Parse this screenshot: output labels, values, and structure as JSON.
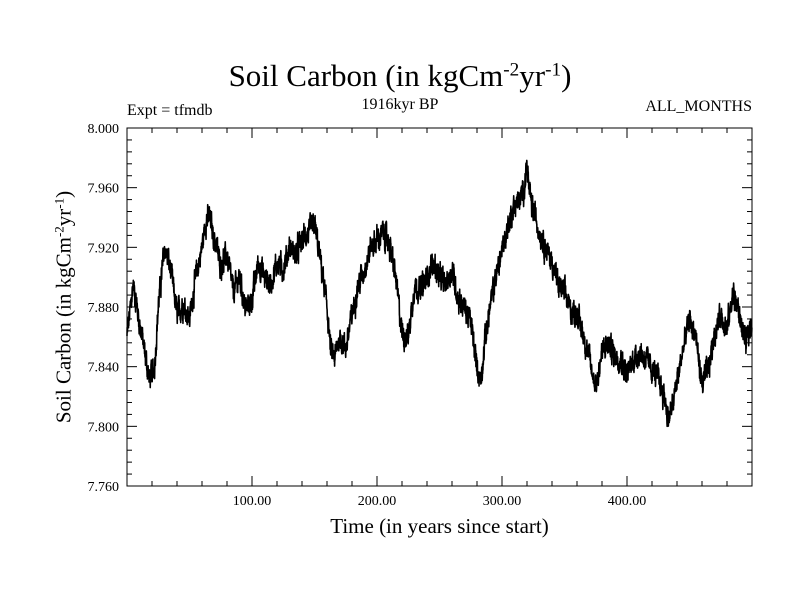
{
  "chart_data": {
    "type": "line",
    "title": {
      "prefix": "Soil Carbon (in kgCm",
      "sup1": "-2",
      "middle": "yr",
      "sup2": "-1",
      "suffix": ")"
    },
    "subtitle": "1916kyr BP",
    "left_note": "Expt = tfmdb",
    "right_note": "ALL_MONTHS",
    "xlabel": "Time (in years since start)",
    "ylabel": {
      "prefix": "Soil Carbon (in kgCm",
      "sup1": "-2",
      "middle": "yr",
      "sup2": "-1",
      "suffix": ")"
    },
    "xlim": [
      0,
      500
    ],
    "ylim": [
      7.76,
      8.0
    ],
    "x_ticks": [
      100,
      200,
      300,
      400
    ],
    "x_tick_labels": [
      "100.00",
      "200.00",
      "300.00",
      "400.00"
    ],
    "y_ticks": [
      7.76,
      7.8,
      7.84,
      7.88,
      7.92,
      7.96,
      8.0
    ],
    "y_tick_labels": [
      "7.760",
      "7.800",
      "7.840",
      "7.880",
      "7.920",
      "7.960",
      "8.000"
    ],
    "grid": false,
    "series": [
      {
        "name": "Soil Carbon",
        "color": "#000000",
        "x": [
          0,
          5,
          10,
          15,
          18,
          22,
          25,
          30,
          35,
          40,
          45,
          50,
          55,
          60,
          63,
          66,
          70,
          75,
          80,
          85,
          90,
          95,
          100,
          105,
          110,
          115,
          120,
          125,
          130,
          135,
          140,
          145,
          150,
          155,
          160,
          163,
          166,
          170,
          175,
          180,
          185,
          190,
          195,
          200,
          205,
          210,
          215,
          220,
          225,
          228,
          230,
          235,
          240,
          245,
          250,
          255,
          260,
          265,
          270,
          275,
          280,
          283,
          286,
          290,
          295,
          300,
          305,
          310,
          315,
          318,
          320,
          322,
          325,
          330,
          335,
          340,
          345,
          350,
          355,
          360,
          365,
          370,
          373,
          376,
          380,
          385,
          390,
          395,
          400,
          405,
          410,
          415,
          420,
          425,
          430,
          433,
          436,
          440,
          445,
          450,
          455,
          460,
          465,
          470,
          475,
          480,
          485,
          490,
          495,
          500
        ],
        "y": [
          7.86,
          7.895,
          7.87,
          7.845,
          7.832,
          7.84,
          7.88,
          7.92,
          7.905,
          7.875,
          7.882,
          7.872,
          7.9,
          7.92,
          7.938,
          7.94,
          7.925,
          7.908,
          7.915,
          7.89,
          7.9,
          7.878,
          7.885,
          7.91,
          7.9,
          7.895,
          7.91,
          7.905,
          7.92,
          7.915,
          7.925,
          7.93,
          7.935,
          7.91,
          7.88,
          7.85,
          7.845,
          7.86,
          7.852,
          7.875,
          7.895,
          7.905,
          7.92,
          7.925,
          7.93,
          7.922,
          7.9,
          7.862,
          7.86,
          7.88,
          7.895,
          7.892,
          7.9,
          7.91,
          7.9,
          7.895,
          7.905,
          7.885,
          7.88,
          7.87,
          7.84,
          7.83,
          7.855,
          7.878,
          7.9,
          7.918,
          7.935,
          7.948,
          7.952,
          7.962,
          7.975,
          7.955,
          7.945,
          7.93,
          7.92,
          7.91,
          7.895,
          7.89,
          7.878,
          7.875,
          7.862,
          7.845,
          7.832,
          7.83,
          7.85,
          7.855,
          7.848,
          7.845,
          7.835,
          7.845,
          7.85,
          7.845,
          7.838,
          7.832,
          7.82,
          7.805,
          7.812,
          7.83,
          7.852,
          7.872,
          7.86,
          7.828,
          7.838,
          7.862,
          7.875,
          7.865,
          7.89,
          7.875,
          7.855,
          7.872
        ]
      }
    ]
  }
}
